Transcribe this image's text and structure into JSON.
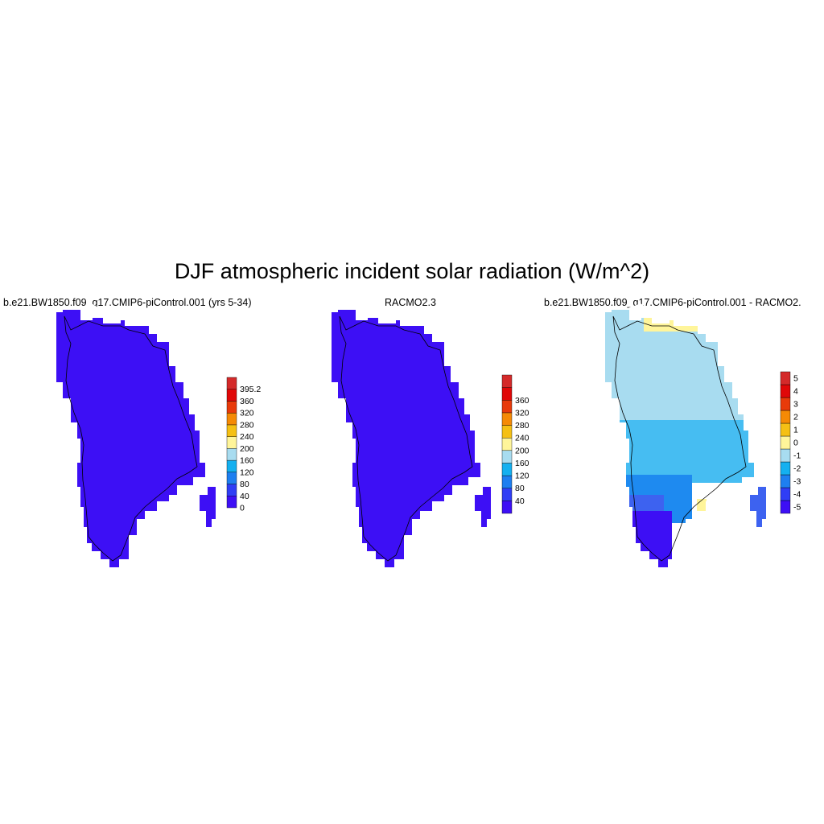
{
  "title": "DJF atmospheric incident solar radiation (W/m^2)",
  "panels": [
    {
      "title": "b.e21.BW1850.f09_g17.CMIP6-piControl.001 (yrs 5-34)",
      "colorbar": {
        "colors": [
          "#3d0ff5",
          "#2f3ef5",
          "#1e7ff0",
          "#14b0f0",
          "#a8dcf0",
          "#fff59a",
          "#f5c014",
          "#f58a05",
          "#e83a0a",
          "#e00808",
          "#d42a2a"
        ],
        "labels": [
          "0",
          "40",
          "80",
          "120",
          "160",
          "200",
          "240",
          "280",
          "320",
          "360",
          "395.2"
        ]
      }
    },
    {
      "title": "RACMO2.3",
      "colorbar": {
        "colors": [
          "#3d0ff5",
          "#2f3ef5",
          "#1e7ff0",
          "#14b0f0",
          "#a8dcf0",
          "#fff59a",
          "#f5c014",
          "#f58a05",
          "#e83a0a",
          "#e00808",
          "#d42a2a"
        ],
        "labels": [
          "40",
          "80",
          "120",
          "160",
          "200",
          "240",
          "280",
          "320",
          "360"
        ]
      }
    },
    {
      "title": "b.e21.BW1850.f09_g17.CMIP6-piControl.001 - RACMO2.",
      "colorbar": {
        "colors": [
          "#3d0ff5",
          "#2f3ef5",
          "#1e7ff0",
          "#14b0f0",
          "#a8dcf0",
          "#fff59a",
          "#f5c014",
          "#f58a05",
          "#e83a0a",
          "#e00808",
          "#d42a2a"
        ],
        "labels": [
          "-5",
          "-4",
          "-3",
          "-2",
          "-1",
          "0",
          "1",
          "2",
          "3",
          "4",
          "5"
        ]
      }
    }
  ],
  "colors": {
    "field_uniform": "#3d0ff5",
    "diff_north": "#a8dcf0",
    "diff_mid": "#46bdf2",
    "diff_south": "#1e8af0",
    "diff_low": "#3d62f0",
    "diff_min": "#3d0ff5",
    "diff_pos": "#fff59a"
  }
}
